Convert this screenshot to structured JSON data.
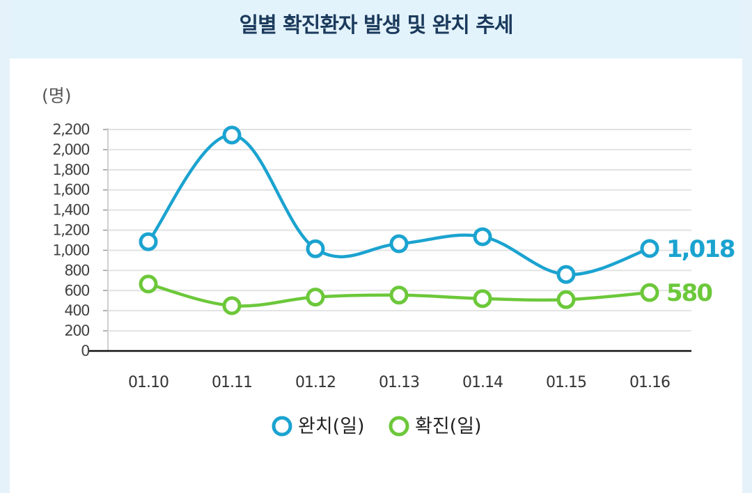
{
  "title": "일별 확진환자 발생 및 완치 추세",
  "chart_data": {
    "type": "line",
    "title": "일별 확진환자 발생 및 완치 추세",
    "unit_label": "(명)",
    "categories": [
      "01.10",
      "01.11",
      "01.12",
      "01.13",
      "01.14",
      "01.15",
      "01.16"
    ],
    "ylim": [
      0,
      2200
    ],
    "yticks": [
      0,
      200,
      400,
      600,
      800,
      1000,
      1200,
      1400,
      1600,
      1800,
      2000,
      2200
    ],
    "ytick_labels": [
      "0",
      "200",
      "400",
      "600",
      "800",
      "1,000",
      "1,200",
      "1,400",
      "1,600",
      "1,800",
      "2,000",
      "2,200"
    ],
    "grid": true,
    "legend_position": "bottom-center",
    "series": [
      {
        "name": "완치(일)",
        "color": "#1ba3d0",
        "values": [
          1085,
          2145,
          1015,
          1065,
          1135,
          760,
          1018
        ],
        "end_label": "1,018"
      },
      {
        "name": "확진(일)",
        "color": "#6cc83a",
        "values": [
          665,
          450,
          535,
          555,
          520,
          510,
          580
        ],
        "end_label": "580"
      }
    ]
  }
}
